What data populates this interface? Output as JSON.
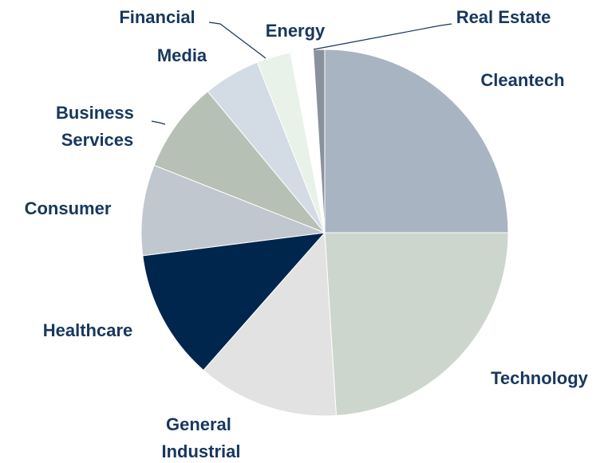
{
  "chart_data": {
    "type": "pie",
    "categories": [
      "Cleantech",
      "Technology",
      "General Industrial",
      "Healthcare",
      "Consumer",
      "Business Services",
      "Media",
      "Financial",
      "Energy",
      "Real Estate"
    ],
    "values": [
      25,
      24,
      12.5,
      11.5,
      8,
      8,
      5,
      3,
      2,
      1
    ],
    "colors": [
      "#a9b4c2",
      "#cdd6cc",
      "#e2e2e2",
      "#00264d",
      "#c1c7cf",
      "#b7c0b5",
      "#d3dbe5",
      "#e9f2e8",
      "#ffffff",
      "#8b919c"
    ]
  }
}
